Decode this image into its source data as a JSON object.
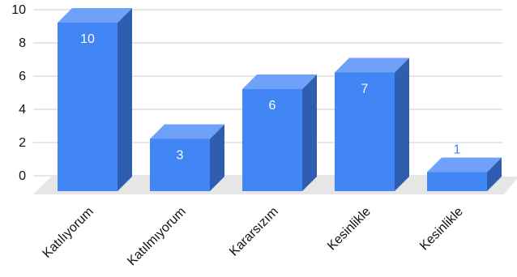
{
  "chart_data": {
    "type": "bar",
    "style": "3d",
    "categories": [
      "Katılıyorum",
      "Katılmıyorum",
      "Kararsızım",
      "Kesinlikle",
      "Kesinlikle"
    ],
    "values": [
      10,
      3,
      6,
      7,
      1
    ],
    "data_labels": [
      "10",
      "3",
      "6",
      "7",
      "1"
    ],
    "title": "",
    "xlabel": "",
    "ylabel": "",
    "ylim": [
      0,
      10
    ],
    "yticks": [
      "0",
      "2",
      "4",
      "6",
      "8",
      "10"
    ],
    "grid": true,
    "legend": "none",
    "colors": {
      "bar_front": "#4285f4",
      "bar_side": "#2f5db0",
      "bar_top": "#6ea1f7",
      "floor": "#e6e6e6",
      "grid": "#cccccc",
      "label_inside": "#ffffff",
      "label_outside": "#4285f4"
    }
  }
}
